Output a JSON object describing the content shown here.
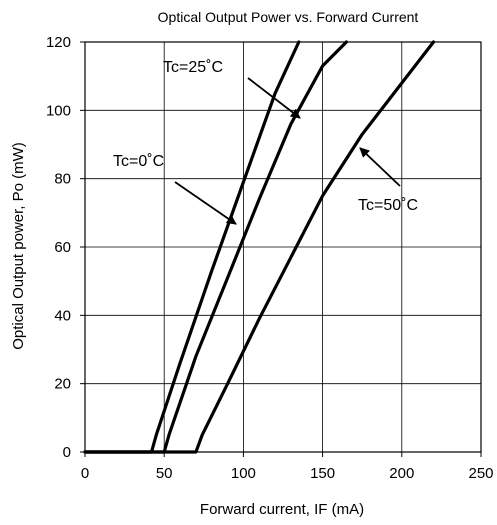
{
  "chart_data": {
    "type": "line",
    "title": "Optical Output Power vs. Forward Current",
    "xlabel": "Forward current, IF (mA)",
    "ylabel": "Optical Output power, Po (mW)",
    "xlim": [
      0,
      250
    ],
    "ylim": [
      0,
      120
    ],
    "xticks": [
      "0",
      "50",
      "100",
      "150",
      "200",
      "250"
    ],
    "yticks": [
      "0",
      "20",
      "40",
      "60",
      "80",
      "100",
      "120"
    ],
    "grid": true,
    "line_color": "#000000",
    "series": [
      {
        "name": "Tc=0˚C",
        "x": [
          0,
          42,
          45,
          60,
          80,
          100,
          120,
          135
        ],
        "y": [
          0,
          0,
          5,
          26,
          53,
          79,
          105,
          120
        ]
      },
      {
        "name": "Tc=25˚C",
        "x": [
          0,
          50,
          53,
          70,
          90,
          110,
          130,
          150,
          165
        ],
        "y": [
          0,
          0,
          5,
          28,
          51,
          74,
          96,
          113,
          120
        ]
      },
      {
        "name": "Tc=50˚C",
        "x": [
          0,
          70,
          74,
          90,
          110,
          130,
          150,
          175,
          200,
          220
        ],
        "y": [
          0,
          0,
          5,
          20,
          39,
          57,
          75,
          93,
          108,
          120
        ]
      }
    ],
    "annotations": [
      {
        "text": "Tc=0˚C",
        "series": 0
      },
      {
        "text": "Tc=25˚C",
        "series": 1
      },
      {
        "text": "Tc=50˚C",
        "series": 2
      }
    ]
  }
}
